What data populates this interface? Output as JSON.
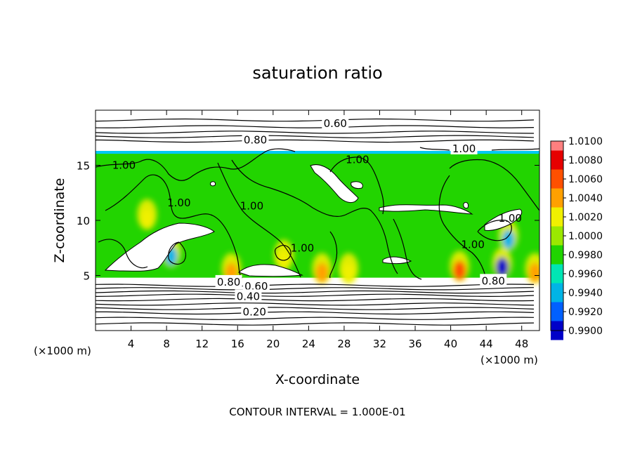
{
  "chart_data": {
    "type": "heatmap",
    "title": "saturation ratio",
    "xlabel": "X-coordinate",
    "ylabel": "Z-coordinate",
    "x_unit": "(×1000 m)",
    "x_unit_right": "(×1000 m)",
    "xlim": [
      0,
      50
    ],
    "ylim": [
      0,
      20
    ],
    "x_ticks": [
      4,
      8,
      12,
      16,
      20,
      24,
      28,
      32,
      36,
      40,
      44,
      48
    ],
    "y_ticks": [
      5,
      10,
      15
    ],
    "footer": "CONTOUR INTERVAL = 1.000E-01",
    "colorbar": {
      "ticks": [
        "1.0100",
        "1.0080",
        "1.0060",
        "1.0040",
        "1.0020",
        "1.0000",
        "0.9980",
        "0.9960",
        "0.9940",
        "0.9920",
        "0.9900"
      ],
      "colors": [
        "#ff7f7f",
        "#e60000",
        "#ff5000",
        "#ffa000",
        "#f0f000",
        "#9be800",
        "#20d400",
        "#00e6b4",
        "#00b4e6",
        "#0060ff",
        "#0000c8",
        "#5000a0"
      ]
    },
    "contour_labels": [
      {
        "text": "0.60",
        "x": 27.0,
        "z": 18.8
      },
      {
        "text": "0.80",
        "x": 18.0,
        "z": 17.3
      },
      {
        "text": "1.00",
        "x": 41.5,
        "z": 16.5
      },
      {
        "text": "1.00",
        "x": 3.2,
        "z": 15.0
      },
      {
        "text": "1.00",
        "x": 29.5,
        "z": 15.5
      },
      {
        "text": "1.00",
        "x": 9.4,
        "z": 11.6
      },
      {
        "text": "1.00",
        "x": 17.6,
        "z": 11.3
      },
      {
        "text": "1.00",
        "x": 23.3,
        "z": 7.5
      },
      {
        "text": "1.00",
        "x": 46.7,
        "z": 10.2
      },
      {
        "text": "1.00",
        "x": 42.5,
        "z": 7.8
      },
      {
        "text": "0.80",
        "x": 15.0,
        "z": 4.4
      },
      {
        "text": "0.60",
        "x": 18.1,
        "z": 4.0
      },
      {
        "text": "0.40",
        "x": 17.2,
        "z": 3.1
      },
      {
        "text": "0.20",
        "x": 17.9,
        "z": 1.7
      },
      {
        "text": "0.80",
        "x": 44.8,
        "z": 4.5
      }
    ],
    "contour_levels_z": [
      0.6,
      1.1,
      1.6,
      2.0,
      2.4,
      2.8,
      3.2,
      3.5,
      3.8,
      4.1,
      17.2,
      17.6,
      18.0,
      18.5,
      19.1
    ],
    "color_field_zrange": [
      4.8,
      16.3
    ],
    "hotspots": [
      {
        "x": 15.3,
        "z": 5.0,
        "value": 1.006
      },
      {
        "x": 25.5,
        "z": 5.0,
        "value": 1.007
      },
      {
        "x": 28.5,
        "z": 5.0,
        "value": 1.004
      },
      {
        "x": 41.0,
        "z": 5.2,
        "value": 1.008
      },
      {
        "x": 49.5,
        "z": 5.0,
        "value": 1.006
      },
      {
        "x": 5.8,
        "z": 9.9,
        "value": 1.005
      },
      {
        "x": 21.2,
        "z": 6.2,
        "value": 1.004
      },
      {
        "x": 45.8,
        "z": 5.5,
        "value": 0.992
      },
      {
        "x": 46.5,
        "z": 8.0,
        "value": 0.996
      },
      {
        "x": 8.5,
        "z": 6.5,
        "value": 0.996
      }
    ]
  }
}
